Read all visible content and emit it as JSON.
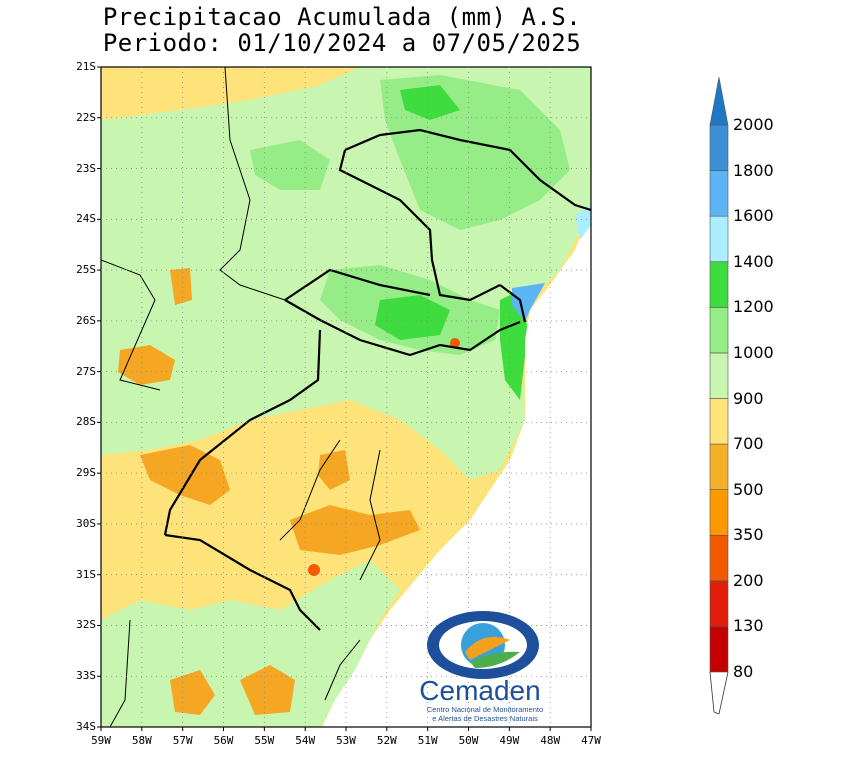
{
  "title": {
    "line1": "Precipitacao Acumulada (mm) A.S.",
    "line2": "Periodo: 01/10/2024 a 07/05/2025"
  },
  "axes": {
    "y_labels": [
      "21S",
      "22S",
      "23S",
      "24S",
      "25S",
      "26S",
      "27S",
      "28S",
      "29S",
      "30S",
      "31S",
      "32S",
      "33S",
      "34S"
    ],
    "x_labels": [
      "59W",
      "58W",
      "57W",
      "56W",
      "55W",
      "54W",
      "53W",
      "52W",
      "51W",
      "50W",
      "49W",
      "48W",
      "47W"
    ],
    "lat_range": [
      -34,
      -21
    ],
    "lon_range": [
      -59,
      -47
    ],
    "grid": "dotted"
  },
  "colorbar": {
    "levels": [
      "80",
      "130",
      "200",
      "350",
      "500",
      "700",
      "900",
      "1000",
      "1200",
      "1400",
      "1600",
      "1800",
      "2000"
    ],
    "colors": [
      "#c40000",
      "#e01e0a",
      "#f25a00",
      "#fb9a00",
      "#f5b02a",
      "#fde37a",
      "#c8f5b0",
      "#96ec86",
      "#3fdc3f",
      "#aaeeff",
      "#5cb4f5",
      "#3c8fd6",
      "#1f78c2"
    ]
  },
  "logo": {
    "name": "Cemaden",
    "subtitle1": "Centro Nacional de Monitoramento",
    "subtitle2": "e Alertas de Desastres Naturais"
  },
  "map_colors": {
    "sea": "#ffffff",
    "light_orange": "#fde37a",
    "orange": "#f5a623",
    "light_green": "#c8f5b0",
    "green": "#96ec86",
    "bright_green": "#3fdc3f",
    "blue": "#5cb4f5"
  }
}
